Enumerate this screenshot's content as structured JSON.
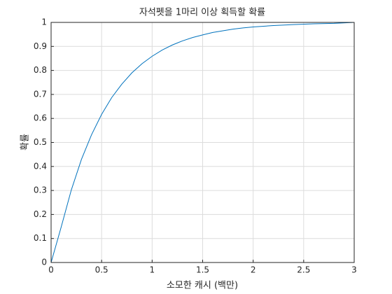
{
  "chart_data": {
    "type": "line",
    "title": "자석펫을 1마리 이상 획득할 확률",
    "x_label": "소모한 캐시 (백만)",
    "y_label": "확률",
    "x": [
      0,
      0.1,
      0.2,
      0.3,
      0.4,
      0.5,
      0.6,
      0.7,
      0.8,
      0.9,
      1.0,
      1.1,
      1.2,
      1.3,
      1.4,
      1.5,
      1.6,
      1.7,
      1.8,
      1.9,
      2.0,
      2.2,
      2.4,
      2.6,
      2.8,
      3.0
    ],
    "series": [
      {
        "color": "#0072bd",
        "values": [
          0,
          0.148,
          0.302,
          0.429,
          0.532,
          0.617,
          0.687,
          0.743,
          0.79,
          0.828,
          0.859,
          0.885,
          0.906,
          0.923,
          0.937,
          0.948,
          0.958,
          0.965,
          0.972,
          0.977,
          0.981,
          0.987,
          0.991,
          0.994,
          0.996,
          1
        ]
      }
    ],
    "xlim": [
      0,
      3
    ],
    "xticks": [
      0,
      0.5,
      1,
      1.5,
      2,
      2.5,
      3
    ],
    "ylim": [
      0,
      1
    ],
    "yticks": [
      0,
      0.1,
      0.2,
      0.3,
      0.4,
      0.5,
      0.6,
      0.7,
      0.8,
      0.9,
      1
    ],
    "grid": true
  }
}
